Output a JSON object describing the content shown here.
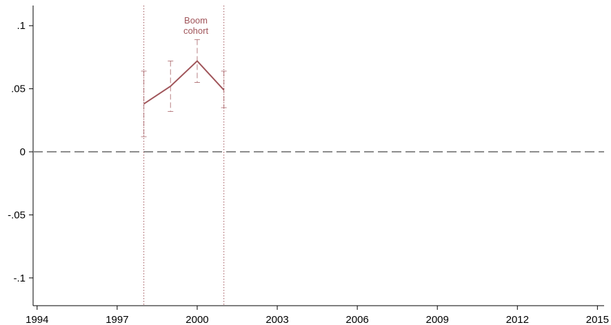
{
  "chart_data": {
    "type": "line",
    "title": "",
    "xlabel": "",
    "ylabel": "",
    "xlim": [
      1993.85,
      2015.25
    ],
    "ylim": [
      -0.122,
      0.116
    ],
    "x_ticks": [
      "1994",
      "1997",
      "2000",
      "2003",
      "2006",
      "2009",
      "2012",
      "2015"
    ],
    "x_tick_values": [
      1994,
      1997,
      2000,
      2003,
      2006,
      2009,
      2012,
      2015
    ],
    "y_ticks": [
      ".1",
      ".05",
      "0",
      "-.05",
      "-.1"
    ],
    "y_tick_values": [
      0.1,
      0.05,
      0,
      -0.05,
      -0.1
    ],
    "grid": false,
    "reference_line": {
      "y": 0,
      "style": "dashed",
      "color": "#8c8c8c"
    },
    "vertical_markers": [
      {
        "x": 1998,
        "style": "dotted",
        "color": "#a0555a"
      },
      {
        "x": 2001,
        "style": "dotted",
        "color": "#a0555a"
      }
    ],
    "annotation": {
      "lines": [
        "Boom",
        "cohort"
      ],
      "x": 1999.95,
      "color": "#a0555a"
    },
    "series": [
      {
        "color": "#a0555a",
        "x": [
          1998,
          1999,
          2000,
          2001
        ],
        "y": [
          0.038,
          0.052,
          0.072,
          0.049
        ],
        "ci_low": [
          0.012,
          0.032,
          0.055,
          0.035
        ],
        "ci_high": [
          0.064,
          0.072,
          0.089,
          0.064
        ]
      }
    ]
  }
}
